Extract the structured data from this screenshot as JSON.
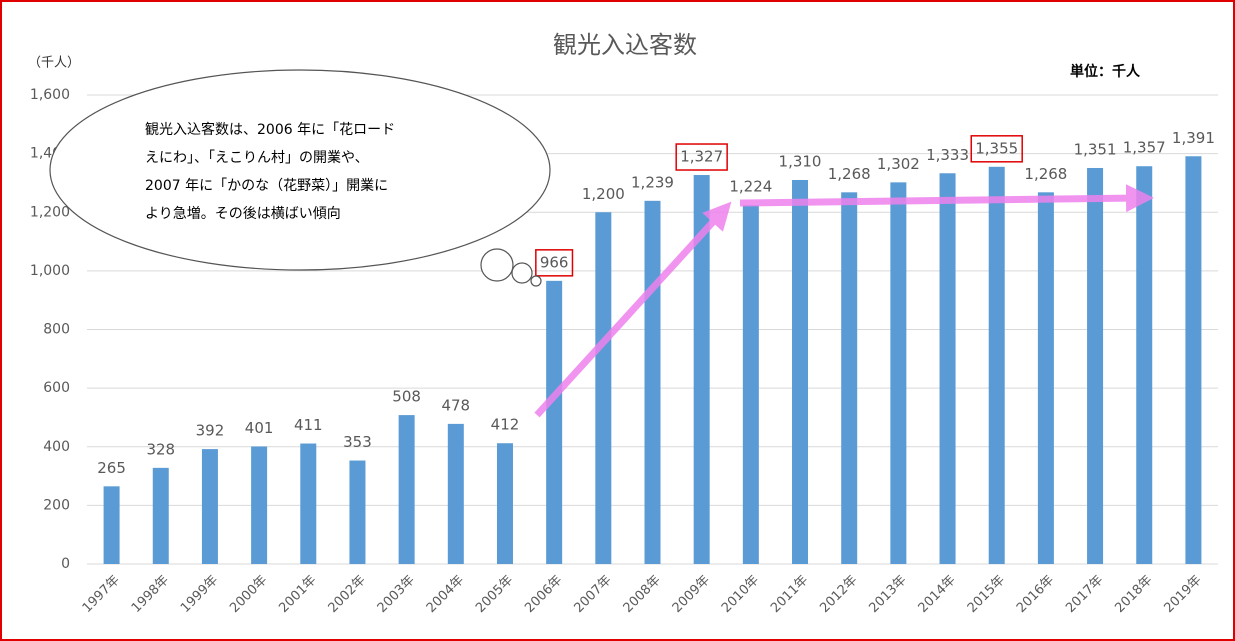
{
  "chart_data": {
    "type": "bar",
    "title": "観光入込客数",
    "y_label": "（千人）",
    "unit_note": "単位：千人",
    "annotation": [
      "観光入込客数は、2006 年に「花ロード",
      "えにわ」、「えこりん村」の開業や、",
      "2007 年に「かのな（花野菜）」開業に",
      "より急増。その後は横ばい傾向"
    ],
    "categories": [
      "1997年",
      "1998年",
      "1999年",
      "2000年",
      "2001年",
      "2002年",
      "2003年",
      "2004年",
      "2005年",
      "2006年",
      "2007年",
      "2008年",
      "2009年",
      "2010年",
      "2011年",
      "2012年",
      "2013年",
      "2014年",
      "2015年",
      "2016年",
      "2017年",
      "2018年",
      "2019年"
    ],
    "values": [
      265,
      328,
      392,
      401,
      411,
      353,
      508,
      478,
      412,
      966,
      1200,
      1239,
      1327,
      1224,
      1310,
      1268,
      1302,
      1333,
      1355,
      1268,
      1351,
      1357,
      1391
    ],
    "value_labels": [
      "265",
      "328",
      "392",
      "401",
      "411",
      "353",
      "508",
      "478",
      "412",
      "966",
      "1,200",
      "1,239",
      "1,327",
      "1,224",
      "1,310",
      "1,268",
      "1,302",
      "1,333",
      "1,355",
      "1,268",
      "1,351",
      "1,357",
      "1,391"
    ],
    "highlighted": [
      9,
      12,
      18
    ],
    "color": "#5b9bd5",
    "ylim": [
      0,
      1600
    ],
    "yticks": [
      0,
      200,
      400,
      600,
      800,
      {
        "value": 1000,
        "label": "1,000"
      },
      {
        "value": 1200,
        "label": "1,200"
      },
      {
        "value": 1400,
        "label": "1,400"
      },
      {
        "value": 1600,
        "label": "1,600"
      }
    ],
    "grid": true
  }
}
